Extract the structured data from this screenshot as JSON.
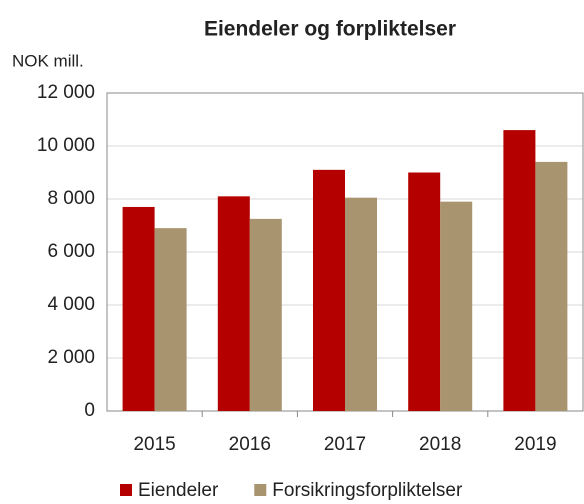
{
  "chart_data": {
    "type": "bar",
    "title": "Eiendeler og forpliktelser",
    "y_label": "NOK mill.",
    "categories": [
      "2015",
      "2016",
      "2017",
      "2018",
      "2019"
    ],
    "series": [
      {
        "name": "Eiendeler",
        "color": "#b50000",
        "values": [
          7700,
          8100,
          9100,
          9000,
          10600
        ]
      },
      {
        "name": "Forsikringsforpliktelser",
        "color": "#a8946f",
        "values": [
          6900,
          7250,
          8050,
          7900,
          9400
        ]
      }
    ],
    "ylim": [
      0,
      12000
    ],
    "yticks": [
      0,
      {
        "value": 2000,
        "label": "2 000"
      },
      {
        "value": 4000,
        "label": "4 000"
      },
      {
        "value": 6000,
        "label": "6 000"
      },
      {
        "value": 8000,
        "label": "8 000"
      },
      {
        "value": 10000,
        "label": "10 000"
      },
      {
        "value": 12000,
        "label": "12 000"
      }
    ],
    "grid": true,
    "legend": "bottom"
  }
}
